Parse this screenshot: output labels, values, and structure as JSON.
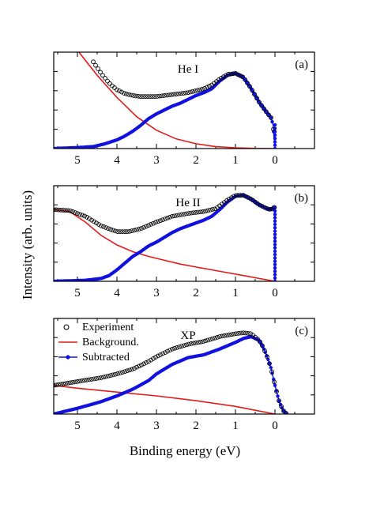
{
  "figure": {
    "ylabel": "Intensity (arb. units)",
    "xlabel": "Binding energy (eV)"
  },
  "colors": {
    "experiment": "#000000",
    "background": "#e41a1c",
    "subtracted": "#1010e0",
    "frame": "#000000"
  },
  "chart_data": [
    {
      "type": "line",
      "title": "He I",
      "panel_label": "(a)",
      "xlim": [
        5.6,
        -1.0
      ],
      "xticks": [
        "5",
        "4",
        "3",
        "2",
        "1",
        "0"
      ],
      "xtick_values": [
        5,
        4,
        3,
        2,
        1,
        0
      ],
      "ylim": [
        0,
        1.0
      ],
      "y_ticks_labeled": false,
      "legend": "none",
      "series": [
        {
          "key": "experiment",
          "x": [
            4.6,
            4.4,
            4.2,
            4.0,
            3.8,
            3.6,
            3.4,
            3.2,
            3.0,
            2.8,
            2.6,
            2.4,
            2.2,
            2.0,
            1.8,
            1.6,
            1.4,
            1.2,
            1.0,
            0.8,
            0.6,
            0.4,
            0.2,
            0.1,
            0.05,
            0.0
          ],
          "values": [
            0.9,
            0.78,
            0.68,
            0.61,
            0.57,
            0.55,
            0.54,
            0.54,
            0.54,
            0.55,
            0.56,
            0.57,
            0.58,
            0.6,
            0.62,
            0.66,
            0.72,
            0.77,
            0.78,
            0.74,
            0.62,
            0.48,
            0.37,
            0.32,
            0.25,
            0.0
          ]
        },
        {
          "key": "background",
          "x": [
            5.5,
            5.0,
            4.5,
            4.0,
            3.5,
            3.0,
            2.5,
            2.0,
            1.5,
            1.0,
            0.5,
            0.0
          ],
          "values": [
            1.3,
            1.02,
            0.76,
            0.53,
            0.33,
            0.19,
            0.1,
            0.05,
            0.02,
            0.008,
            0.002,
            0.0
          ]
        },
        {
          "key": "subtracted",
          "x": [
            5.6,
            5.0,
            4.6,
            4.3,
            4.0,
            3.8,
            3.6,
            3.4,
            3.2,
            3.0,
            2.8,
            2.6,
            2.4,
            2.2,
            2.0,
            1.8,
            1.6,
            1.4,
            1.2,
            1.0,
            0.8,
            0.6,
            0.4,
            0.2,
            0.1,
            0.05,
            0.0
          ],
          "values": [
            0.0,
            0.01,
            0.02,
            0.05,
            0.09,
            0.13,
            0.18,
            0.24,
            0.31,
            0.36,
            0.4,
            0.44,
            0.47,
            0.51,
            0.55,
            0.58,
            0.62,
            0.7,
            0.76,
            0.78,
            0.74,
            0.62,
            0.48,
            0.37,
            0.32,
            0.25,
            0.0
          ]
        }
      ]
    },
    {
      "type": "line",
      "title": "He II",
      "panel_label": "(b)",
      "xlim": [
        5.6,
        -1.0
      ],
      "xticks": [
        "5",
        "4",
        "3",
        "2",
        "1",
        "0"
      ],
      "xtick_values": [
        5,
        4,
        3,
        2,
        1,
        0
      ],
      "ylim": [
        0,
        1.0
      ],
      "y_ticks_labeled": false,
      "legend": "none",
      "series": [
        {
          "key": "experiment",
          "x": [
            5.6,
            5.2,
            4.8,
            4.4,
            4.0,
            3.7,
            3.4,
            3.0,
            2.6,
            2.2,
            1.8,
            1.5,
            1.2,
            1.0,
            0.8,
            0.6,
            0.4,
            0.2,
            0.1,
            0.0,
            0.0
          ],
          "values": [
            0.75,
            0.74,
            0.68,
            0.58,
            0.52,
            0.52,
            0.55,
            0.62,
            0.68,
            0.71,
            0.73,
            0.76,
            0.85,
            0.9,
            0.9,
            0.86,
            0.8,
            0.76,
            0.75,
            0.78,
            0.0
          ]
        },
        {
          "key": "background",
          "x": [
            5.6,
            5.2,
            4.8,
            4.4,
            4.0,
            3.6,
            3.2,
            2.8,
            2.4,
            2.0,
            1.6,
            1.2,
            0.8,
            0.4,
            0.0
          ],
          "values": [
            0.75,
            0.73,
            0.62,
            0.48,
            0.38,
            0.31,
            0.26,
            0.22,
            0.18,
            0.15,
            0.12,
            0.09,
            0.06,
            0.03,
            0.0
          ]
        },
        {
          "key": "subtracted",
          "x": [
            5.6,
            4.8,
            4.4,
            4.2,
            4.0,
            3.8,
            3.6,
            3.4,
            3.2,
            3.0,
            2.8,
            2.6,
            2.4,
            2.2,
            2.0,
            1.8,
            1.6,
            1.4,
            1.2,
            1.0,
            0.8,
            0.6,
            0.4,
            0.2,
            0.1,
            0.0,
            0.0
          ],
          "values": [
            0.0,
            0.01,
            0.03,
            0.06,
            0.12,
            0.19,
            0.26,
            0.31,
            0.37,
            0.41,
            0.46,
            0.51,
            0.55,
            0.58,
            0.61,
            0.64,
            0.68,
            0.75,
            0.83,
            0.89,
            0.9,
            0.86,
            0.8,
            0.76,
            0.75,
            0.78,
            0.0
          ]
        }
      ]
    },
    {
      "type": "line",
      "title": "XP",
      "panel_label": "(c)",
      "xlim": [
        5.6,
        -1.0
      ],
      "xticks": [
        "5",
        "4",
        "3",
        "2",
        "1",
        "0"
      ],
      "xtick_values": [
        5,
        4,
        3,
        2,
        1,
        0
      ],
      "ylim": [
        0,
        1.0
      ],
      "y_ticks_labeled": false,
      "legend": "top-left",
      "series": [
        {
          "key": "experiment",
          "name": "Experiment",
          "x": [
            5.6,
            5.0,
            4.4,
            4.0,
            3.6,
            3.2,
            3.0,
            2.8,
            2.6,
            2.2,
            1.8,
            1.4,
            1.0,
            0.8,
            0.6,
            0.4,
            0.3,
            0.2,
            0.1,
            0.0,
            -0.1,
            -0.2,
            -0.3
          ],
          "values": [
            0.3,
            0.34,
            0.38,
            0.42,
            0.47,
            0.55,
            0.6,
            0.64,
            0.68,
            0.73,
            0.76,
            0.81,
            0.84,
            0.85,
            0.84,
            0.77,
            0.7,
            0.6,
            0.48,
            0.3,
            0.14,
            0.04,
            0.0
          ]
        },
        {
          "key": "background",
          "name": "Background.",
          "x": [
            5.6,
            5.0,
            4.0,
            3.0,
            2.0,
            1.0,
            0.5,
            0.0
          ],
          "values": [
            0.3,
            0.27,
            0.23,
            0.19,
            0.14,
            0.08,
            0.04,
            0.0
          ]
        },
        {
          "key": "subtracted",
          "name": "Subtracted",
          "x": [
            5.6,
            5.0,
            4.4,
            4.0,
            3.6,
            3.2,
            3.0,
            2.8,
            2.6,
            2.2,
            1.8,
            1.4,
            1.0,
            0.8,
            0.6,
            0.4,
            0.3,
            0.2,
            0.1,
            0.0,
            -0.1,
            -0.2,
            -0.3
          ],
          "values": [
            0.0,
            0.06,
            0.13,
            0.19,
            0.26,
            0.35,
            0.42,
            0.47,
            0.52,
            0.59,
            0.62,
            0.68,
            0.75,
            0.79,
            0.81,
            0.77,
            0.7,
            0.6,
            0.48,
            0.3,
            0.14,
            0.04,
            0.0
          ]
        }
      ]
    }
  ]
}
